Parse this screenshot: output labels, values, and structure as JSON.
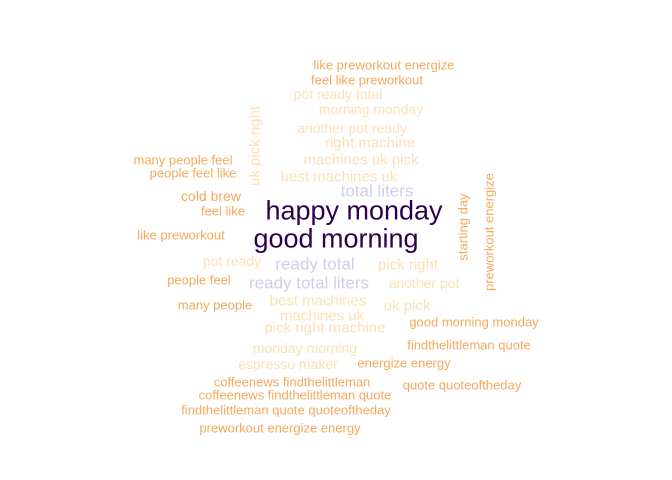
{
  "palette": {
    "dark": "#2d004b",
    "lavender": "#cdd0ea",
    "peach": "#fde0b6",
    "orange": "#f5a95e"
  },
  "words": [
    {
      "text": "happy monday",
      "color": "dark"
    },
    {
      "text": "good morning",
      "color": "dark"
    },
    {
      "text": "total liters",
      "color": "lavender"
    },
    {
      "text": "ready total",
      "color": "lavender"
    },
    {
      "text": "ready total liters",
      "color": "lavender"
    },
    {
      "text": "uk pick right",
      "color": "peach"
    },
    {
      "text": "pot ready total",
      "color": "peach"
    },
    {
      "text": "morning monday",
      "color": "peach"
    },
    {
      "text": "another pot ready",
      "color": "peach"
    },
    {
      "text": "right machine",
      "color": "peach"
    },
    {
      "text": "machines uk pick",
      "color": "peach"
    },
    {
      "text": "best machines uk",
      "color": "peach"
    },
    {
      "text": "pot ready",
      "color": "peach"
    },
    {
      "text": "pick right",
      "color": "peach"
    },
    {
      "text": "another pot",
      "color": "peach"
    },
    {
      "text": "best machines",
      "color": "peach"
    },
    {
      "text": "uk pick",
      "color": "peach"
    },
    {
      "text": "machines uk",
      "color": "peach"
    },
    {
      "text": "pick right machine",
      "color": "peach"
    },
    {
      "text": "monday morning",
      "color": "peach"
    },
    {
      "text": "espresso maker",
      "color": "peach"
    },
    {
      "text": "like preworkout energize",
      "color": "orange"
    },
    {
      "text": "feel like preworkout",
      "color": "orange"
    },
    {
      "text": "many people feel",
      "color": "orange"
    },
    {
      "text": "people feel like",
      "color": "orange"
    },
    {
      "text": "cold brew",
      "color": "orange"
    },
    {
      "text": "feel like",
      "color": "orange"
    },
    {
      "text": "like preworkout",
      "color": "orange"
    },
    {
      "text": "people feel",
      "color": "orange"
    },
    {
      "text": "many people",
      "color": "orange"
    },
    {
      "text": "starting day",
      "color": "orange"
    },
    {
      "text": "preworkout energize",
      "color": "orange"
    },
    {
      "text": "good morning monday",
      "color": "orange"
    },
    {
      "text": "findthelittleman quote",
      "color": "orange"
    },
    {
      "text": "energize energy",
      "color": "orange"
    },
    {
      "text": "coffeenews findthelittleman",
      "color": "orange"
    },
    {
      "text": "quote quoteoftheday",
      "color": "orange"
    },
    {
      "text": "coffeenews findthelittleman quote",
      "color": "orange"
    },
    {
      "text": "findthelittleman quote quoteoftheday",
      "color": "orange"
    },
    {
      "text": "preworkout energize energy",
      "color": "orange"
    }
  ]
}
